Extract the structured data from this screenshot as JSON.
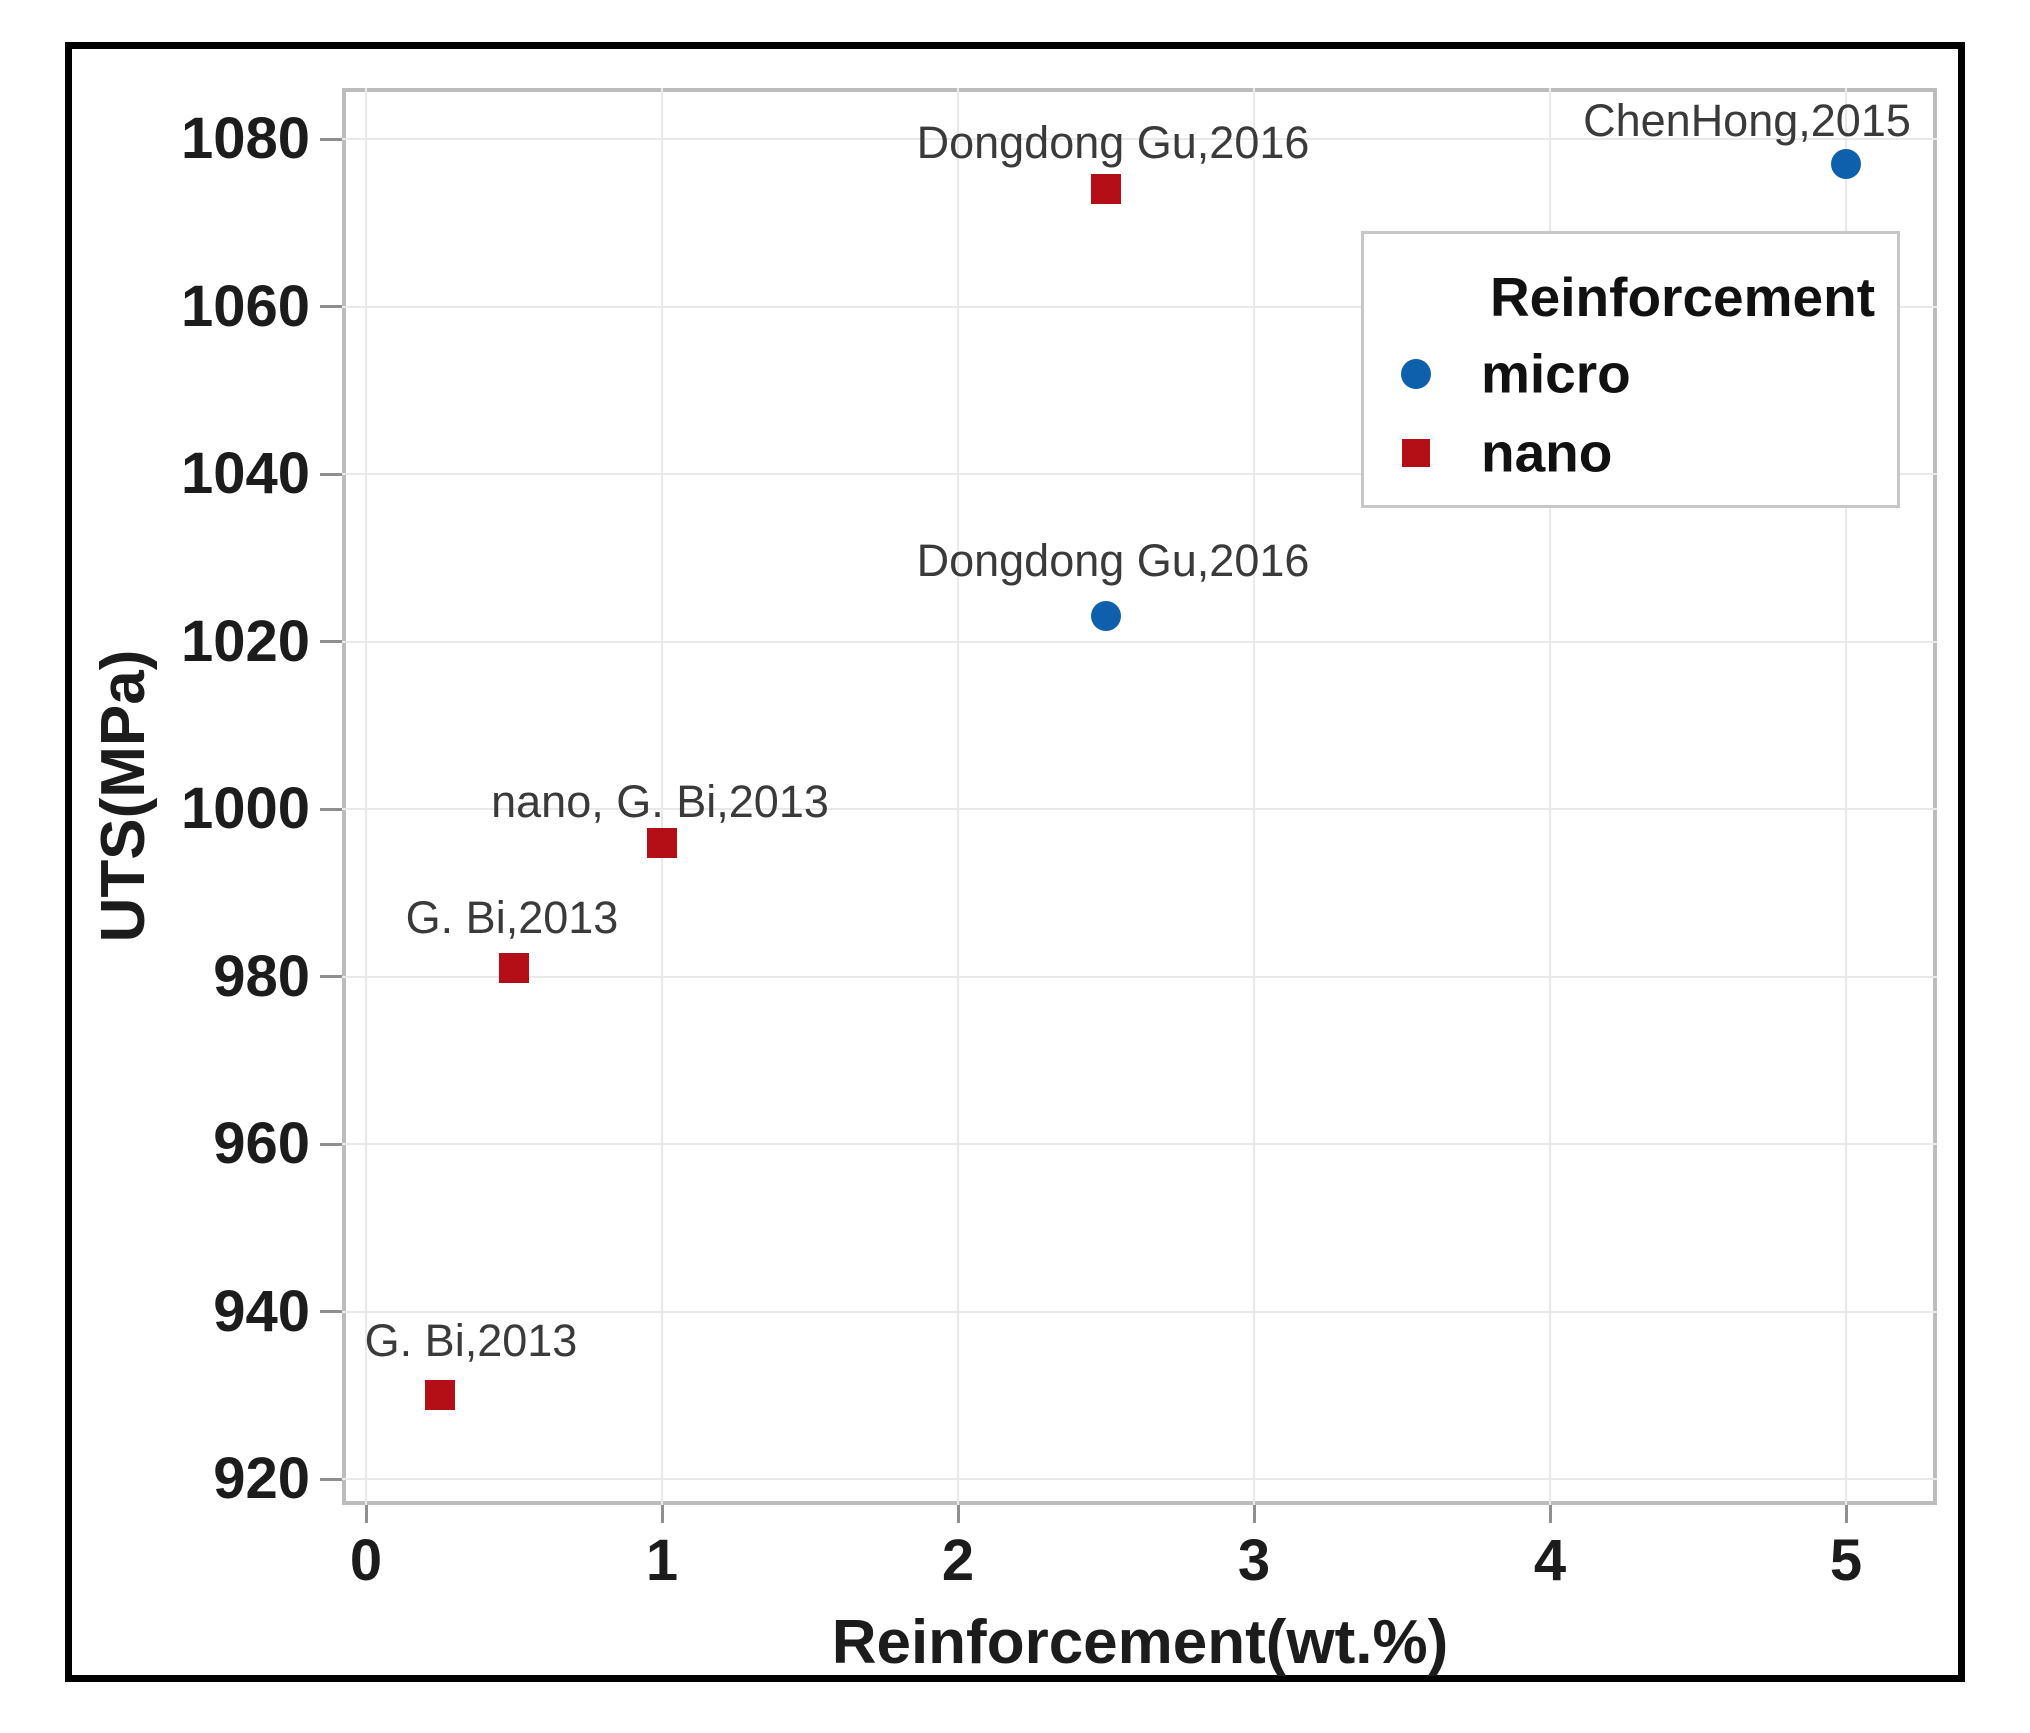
{
  "chart_data": {
    "type": "scatter",
    "xlabel": "Reinforcement(wt.%)",
    "ylabel": "UTS(MPa)",
    "x_ticks": [
      0,
      1,
      2,
      3,
      4,
      5
    ],
    "y_ticks": [
      920,
      940,
      960,
      980,
      1000,
      1020,
      1040,
      1060,
      1080
    ],
    "xlim": [
      -0.08,
      5.31
    ],
    "ylim": [
      917,
      1086
    ],
    "grid": true,
    "background": "#ffffff",
    "gridline_color": "#e9e9e9",
    "plot_border_color": "#bcbcbc",
    "figure_border_color": "#000000",
    "legend": {
      "title": "Reinforcement",
      "position": "top-right",
      "entries": [
        {
          "label": "micro",
          "series": "micro"
        },
        {
          "label": "nano",
          "series": "nano"
        }
      ]
    },
    "series": [
      {
        "name": "micro",
        "marker": "circle",
        "color": "#0E60AC",
        "points": [
          {
            "x": 2.5,
            "y": 1023,
            "label": "Dongdong Gu,2016",
            "label_dx": 7,
            "label_dy": -29
          },
          {
            "x": 5,
            "y": 1077,
            "label": "ChenHong,2015",
            "label_dx": -99,
            "label_dy": -17
          }
        ]
      },
      {
        "name": "nano",
        "marker": "square",
        "color": "#B40F16",
        "points": [
          {
            "x": 0.25,
            "y": 930,
            "label": "G. Bi,2013",
            "label_dx": 31,
            "label_dy": -28
          },
          {
            "x": 0.5,
            "y": 981,
            "label": "G. Bi,2013",
            "label_dx": -2,
            "label_dy": -24
          },
          {
            "x": 1,
            "y": 996,
            "label": "nano, G. Bi,2013",
            "label_dx": -2,
            "label_dy": -14
          },
          {
            "x": 2.5,
            "y": 1074,
            "label": "Dongdong Gu,2016",
            "label_dx": 7,
            "label_dy": -20
          }
        ]
      }
    ]
  }
}
